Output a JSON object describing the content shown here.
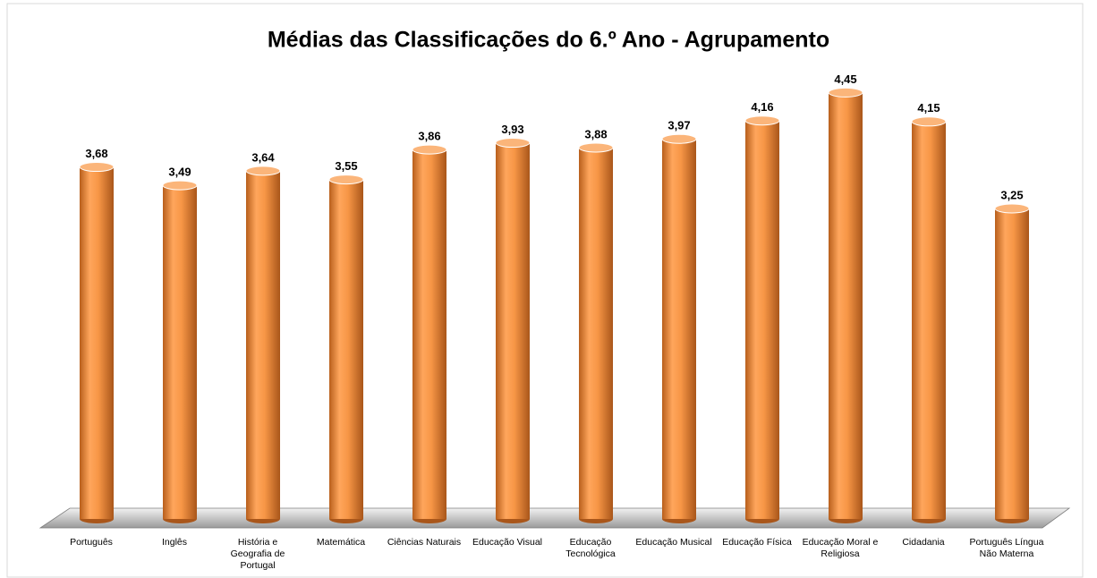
{
  "chart_data": {
    "type": "bar3d",
    "title": "Médias das Classificações do 6.º Ano - Agrupamento",
    "categories": [
      "Português",
      "Inglês",
      "História e Geografia de Portugal",
      "Matemática",
      "Ciências Naturais",
      "Educação Visual",
      "Educação Tecnológica",
      "Educação Musical",
      "Educação Física",
      "Educação Moral e Religiosa",
      "Cidadania",
      "Português Língua Não Materna"
    ],
    "values": [
      3.68,
      3.49,
      3.64,
      3.55,
      3.86,
      3.93,
      3.88,
      3.97,
      4.16,
      4.45,
      4.15,
      3.25
    ],
    "value_labels": [
      "3,68",
      "3,49",
      "3,64",
      "3,55",
      "3,86",
      "3,93",
      "3,88",
      "3,97",
      "4,16",
      "4,45",
      "4,15",
      "3,25"
    ],
    "color": "#f79646",
    "ylim": [
      0,
      5
    ]
  }
}
